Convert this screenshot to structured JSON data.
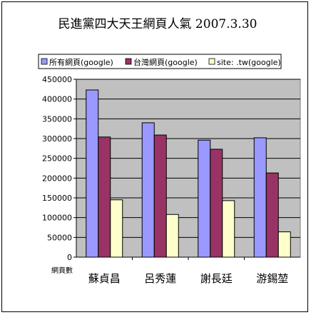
{
  "chart_data": {
    "type": "bar",
    "title": "民進黨四大天王網頁人氣 2007.3.30",
    "ylabel": "網頁數",
    "xlabel": "",
    "ylim": [
      0,
      450000
    ],
    "ytick_step": 50000,
    "ytick_labels": [
      "0",
      "50000",
      "100000",
      "150000",
      "200000",
      "250000",
      "300000",
      "350000",
      "400000",
      "450000"
    ],
    "categories": [
      "蘇貞昌",
      "呂秀蓮",
      "謝長廷",
      "游錫堃"
    ],
    "series": [
      {
        "name": "所有網頁(google)",
        "values": [
          423000,
          340000,
          296000,
          302000
        ],
        "color": "#9999FF"
      },
      {
        "name": "台灣網頁(google)",
        "values": [
          304000,
          309000,
          273000,
          213000
        ],
        "color": "#993366"
      },
      {
        "name": "site: .tw(google)",
        "values": [
          145000,
          108000,
          143000,
          64000
        ],
        "color": "#FFFFCC"
      }
    ],
    "grid": true,
    "legend_position": "top",
    "plot_background": "#C0C0C0"
  }
}
